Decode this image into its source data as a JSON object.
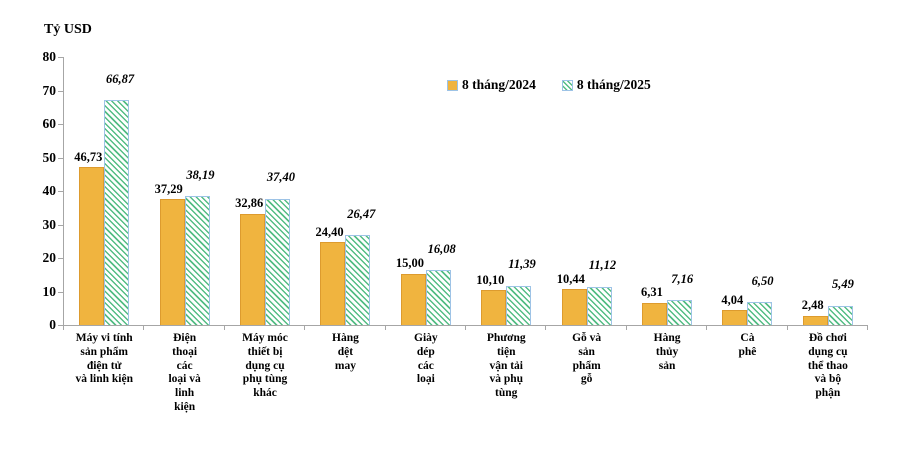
{
  "chart_data": {
    "type": "bar",
    "title": "",
    "ylabel": "Tỷ USD",
    "xlabel": "",
    "ylim": [
      0,
      80
    ],
    "yticks": [
      0,
      10,
      20,
      30,
      40,
      50,
      60,
      70,
      80
    ],
    "grid": false,
    "legend_position": "top-center-inside",
    "axis_color": "#a6a6a6",
    "categories": [
      "Máy vi tính\nsản phẩm\nđiện tử\nvà linh kiện",
      "Điện\nthoại\ncác\nloại và\nlinh\nkiện",
      "Máy móc\nthiết bị\ndụng cụ\nphụ tùng\nkhác",
      "Hàng\ndệt\nmay",
      "Giày\ndép\ncác\nloại",
      "Phương\ntiện\nvận tải\nvà phụ\ntùng",
      "Gỗ và\nsản\nphẩm\ngỗ",
      "Hàng\nthủy\nsản",
      "Cà\nphê",
      "Đồ chơi\ndụng cụ\nthể thao\nvà bộ\nphận"
    ],
    "series": [
      {
        "name": "8 tháng/2024",
        "values": [
          46.73,
          37.29,
          32.86,
          24.4,
          15.0,
          10.1,
          10.44,
          6.31,
          4.04,
          2.48
        ],
        "labels": [
          "46,73",
          "37,29",
          "32,86",
          "24,40",
          "15,00",
          "10,10",
          "10,44",
          "6,31",
          "4,04",
          "2,48"
        ],
        "fill": "#f0b43f",
        "border": "#dd9b2e",
        "pattern": "solid"
      },
      {
        "name": "8 tháng/2025",
        "values": [
          66.87,
          38.19,
          37.4,
          26.47,
          16.08,
          11.39,
          11.12,
          7.16,
          6.5,
          5.49
        ],
        "labels": [
          "66,87",
          "38,19",
          "37,40",
          "26,47",
          "16,08",
          "11,39",
          "11,12",
          "7,16",
          "6,50",
          "5,49"
        ],
        "fill": "#ffffff",
        "hatch_color": "#54bd84",
        "border": "#9dc3e6",
        "pattern": "diagonal-hatch"
      }
    ]
  }
}
